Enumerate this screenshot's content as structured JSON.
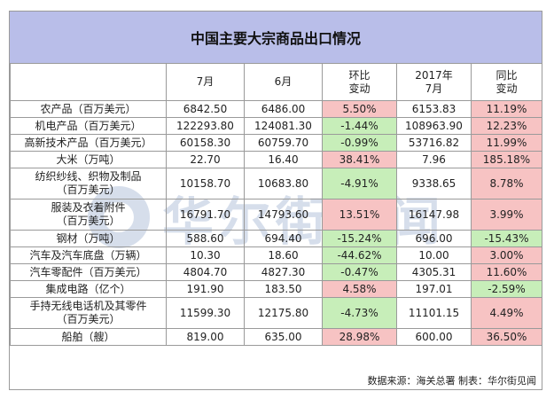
{
  "title": "中国主要大宗商品出口情况",
  "headers": [
    "",
    "7月",
    "6月",
    "环比\n变动",
    "2017年\n7月",
    "同比\n变动"
  ],
  "rows": [
    {
      "name": "农产品（百万美元）",
      "jul": "6842.50",
      "jun": "6486.00",
      "mom": "5.50%",
      "ly": "6153.83",
      "yoy": "11.19%",
      "mom_dir": "up",
      "yoy_dir": "up",
      "tall": false
    },
    {
      "name": "机电产品（百万美元）",
      "jul": "122293.80",
      "jun": "124081.30",
      "mom": "-1.44%",
      "ly": "108963.90",
      "yoy": "12.23%",
      "mom_dir": "down",
      "yoy_dir": "up",
      "tall": false
    },
    {
      "name": "高新技术产品（百万美元）",
      "jul": "60158.30",
      "jun": "60759.70",
      "mom": "-0.99%",
      "ly": "53716.82",
      "yoy": "11.99%",
      "mom_dir": "down",
      "yoy_dir": "up",
      "tall": false
    },
    {
      "name": "大米（万吨）",
      "jul": "22.70",
      "jun": "16.40",
      "mom": "38.41%",
      "ly": "7.96",
      "yoy": "185.18%",
      "mom_dir": "up",
      "yoy_dir": "up",
      "tall": false
    },
    {
      "name": "纺织纱线、织物及制品\n（百万美元）",
      "jul": "10158.70",
      "jun": "10683.80",
      "mom": "-4.91%",
      "ly": "9338.65",
      "yoy": "8.78%",
      "mom_dir": "down",
      "yoy_dir": "up",
      "tall": true
    },
    {
      "name": "服装及衣着附件\n（百万美元）",
      "jul": "16791.70",
      "jun": "14793.60",
      "mom": "13.51%",
      "ly": "16147.98",
      "yoy": "3.99%",
      "mom_dir": "up",
      "yoy_dir": "up",
      "tall": true
    },
    {
      "name": "钢材（万吨）",
      "jul": "588.60",
      "jun": "694.40",
      "mom": "-15.24%",
      "ly": "696.00",
      "yoy": "-15.43%",
      "mom_dir": "down",
      "yoy_dir": "down",
      "tall": false
    },
    {
      "name": "汽车及汽车底盘（万辆）",
      "jul": "10.30",
      "jun": "18.60",
      "mom": "-44.62%",
      "ly": "10.00",
      "yoy": "3.00%",
      "mom_dir": "down",
      "yoy_dir": "up",
      "tall": false
    },
    {
      "name": "汽车零配件（百万美元）",
      "jul": "4804.70",
      "jun": "4827.30",
      "mom": "-0.47%",
      "ly": "4305.31",
      "yoy": "11.60%",
      "mom_dir": "down",
      "yoy_dir": "up",
      "tall": false
    },
    {
      "name": "集成电路（亿个）",
      "jul": "191.90",
      "jun": "183.50",
      "mom": "4.58%",
      "ly": "197.01",
      "yoy": "-2.59%",
      "mom_dir": "up",
      "yoy_dir": "down",
      "tall": false
    },
    {
      "name": "手持无线电话机及其零件\n（百万美元）",
      "jul": "11599.30",
      "jun": "12175.80",
      "mom": "-4.73%",
      "ly": "11101.15",
      "yoy": "4.49%",
      "mom_dir": "down",
      "yoy_dir": "up",
      "tall": true
    },
    {
      "name": "船舶（艘）",
      "jul": "819.00",
      "jun": "635.00",
      "mom": "28.98%",
      "ly": "600.00",
      "yoy": "36.50%",
      "mom_dir": "up",
      "yoy_dir": "up",
      "tall": false
    }
  ],
  "footer": "数据来源：海关总署  制表：华尔街见闻",
  "watermark_text": "华尔街见闻",
  "colors": {
    "title_bg": "#b9bee9",
    "increase_bg": "#f7c3c3",
    "decrease_bg": "#c7eeb9",
    "border": "#9a9a9a"
  }
}
